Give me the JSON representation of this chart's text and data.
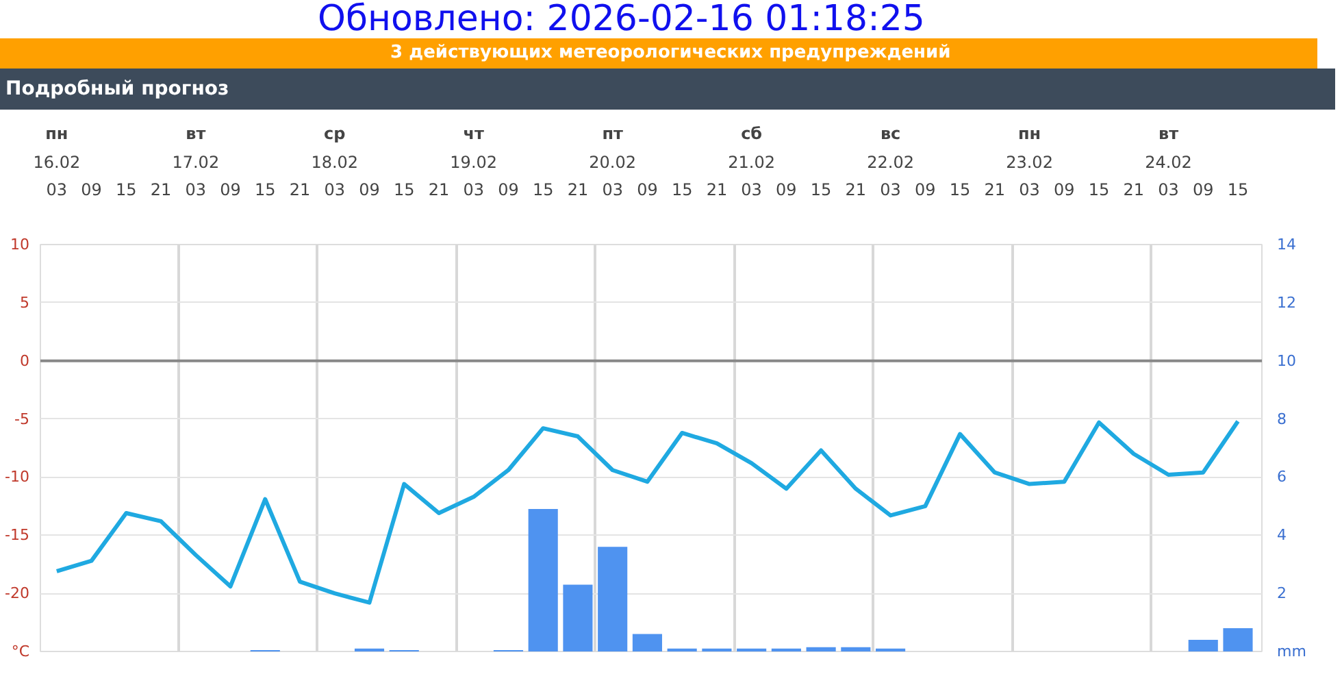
{
  "chart_data": {
    "type": "line",
    "title": "Подробный прогноз",
    "annotations": [
      "Обновлено: 2026-02-16 01:18:25",
      "3 действующих метеорологических предупреждений",
      "пн",
      "16.02",
      "вт",
      "17.02",
      "ср",
      "18.02",
      "чт",
      "19.02",
      "пт",
      "20.02",
      "сб",
      "21.02",
      "вс",
      "22.02",
      "пн",
      "23.02",
      "вт",
      "24.02"
    ],
    "categories": [
      "03",
      "09",
      "15",
      "21",
      "03",
      "09",
      "15",
      "21",
      "03",
      "09",
      "15",
      "21",
      "03",
      "09",
      "15",
      "21",
      "03",
      "09",
      "15",
      "21",
      "03",
      "09",
      "15",
      "21",
      "03",
      "09",
      "15",
      "21",
      "03",
      "09",
      "15",
      "21",
      "03",
      "09",
      "15"
    ],
    "series": [
      {
        "type": "bar",
        "axis": "y2",
        "color": "#4f93f0",
        "values": [
          0,
          0,
          0,
          0,
          0,
          0,
          0.05,
          0,
          0,
          0.1,
          0.05,
          0,
          0,
          0.05,
          4.9,
          2.3,
          3.6,
          0.6,
          0.1,
          0.1,
          0.1,
          0.1,
          0.15,
          0.15,
          0.1,
          0,
          0,
          0,
          0,
          0,
          0,
          0,
          0,
          0.4,
          0.8
        ]
      },
      {
        "color": "#1fa9e1",
        "values": [
          -18.1,
          -17.2,
          -13.1,
          -13.8,
          -16.7,
          -19.4,
          -11.9,
          -19.0,
          -20.0,
          -20.8,
          -10.6,
          -13.1,
          -11.7,
          -9.4,
          -5.8,
          -6.5,
          -9.4,
          -10.4,
          -6.2,
          -7.1,
          -8.8,
          -11.0,
          -7.7,
          -11.0,
          -13.3,
          -12.5,
          -6.3,
          -9.6,
          -10.6,
          -10.4,
          -5.3,
          -8.0,
          -9.8,
          -9.6,
          -5.2
        ]
      }
    ],
    "ylim": [
      -25,
      10
    ],
    "yticks": [
      {
        "value": -25,
        "label": "°C"
      },
      -20,
      -15,
      -10,
      -5,
      0,
      5,
      10
    ],
    "y2lim": [
      0,
      14
    ],
    "y2ticks": [
      {
        "value": 0,
        "label": "mm"
      },
      2,
      4,
      6,
      8,
      10,
      12,
      14
    ],
    "ref_lines": [
      {
        "axis": "y",
        "value": 0,
        "color": "#888888"
      }
    ],
    "grid": true
  }
}
